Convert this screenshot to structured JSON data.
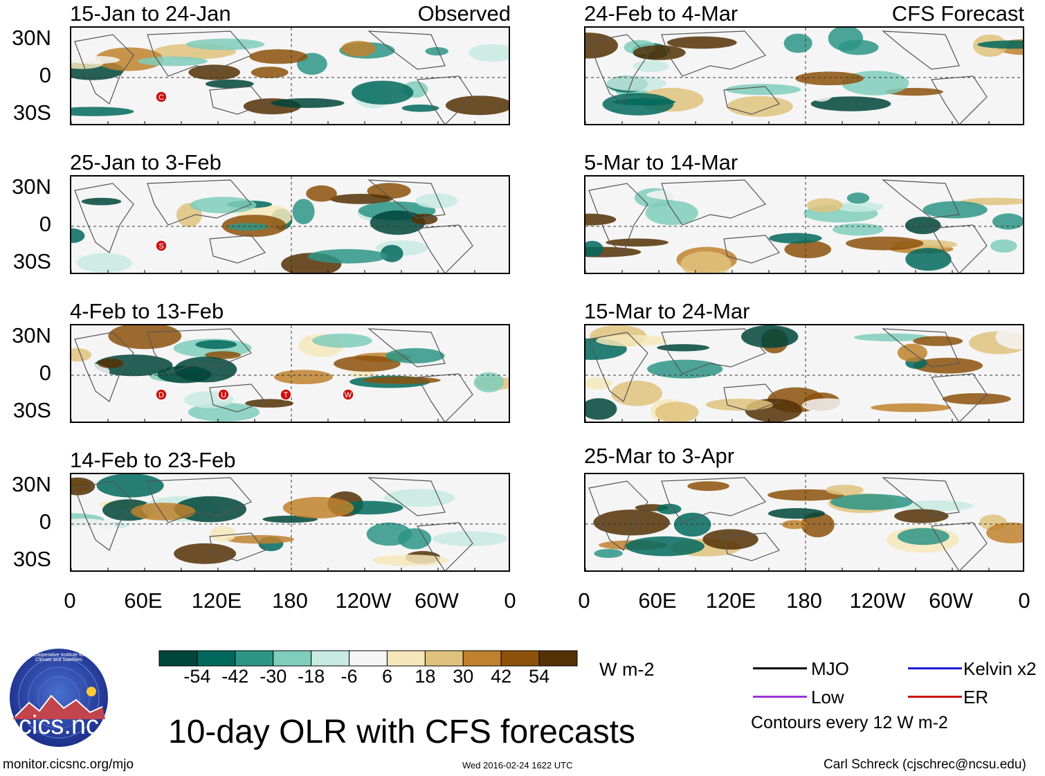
{
  "chart_data": {
    "type": "heatmap",
    "title": "10-day OLR with CFS forecasts",
    "units": "W m-2",
    "lat_ticks": [
      "30N",
      "0",
      "30S"
    ],
    "lon_ticks": [
      "0",
      "60E",
      "120E",
      "180",
      "120W",
      "60W",
      "0"
    ],
    "colorbar": {
      "levels": [
        "-54",
        "-42",
        "-30",
        "-18",
        "-6",
        "6",
        "18",
        "30",
        "42",
        "54"
      ],
      "colors": [
        "#00453a",
        "#02685d",
        "#2d9586",
        "#7fcdbb",
        "#c7eae1",
        "#f5f5f5",
        "#f6e7bb",
        "#dfc27d",
        "#bf812d",
        "#8c510a",
        "#543005"
      ]
    },
    "panels": [
      {
        "title": "15-Jan to 24-Jan",
        "tag": "Observed",
        "storms": [
          "C"
        ]
      },
      {
        "title": "25-Jan to 3-Feb",
        "tag": "",
        "storms": [
          "S"
        ]
      },
      {
        "title": "4-Feb to 13-Feb",
        "tag": "",
        "storms": [
          "D",
          "U",
          "T",
          "W"
        ]
      },
      {
        "title": "14-Feb to 23-Feb",
        "tag": "",
        "storms": []
      },
      {
        "title": "24-Feb to 4-Mar",
        "tag": "CFS Forecast",
        "storms": []
      },
      {
        "title": "5-Mar to 14-Mar",
        "tag": "",
        "storms": []
      },
      {
        "title": "15-Mar to 24-Mar",
        "tag": "",
        "storms": []
      },
      {
        "title": "25-Mar to 3-Apr",
        "tag": "",
        "storms": []
      }
    ]
  },
  "legend": {
    "mjo": "MJO",
    "kelvin": "Kelvin x2",
    "low": "Low",
    "er": "ER",
    "contours": "Contours every 12 W m-2",
    "colors": {
      "mjo": "#000000",
      "kelvin": "#1a1adc",
      "low": "#9933dd",
      "er": "#cc1111"
    }
  },
  "footer": {
    "left": "monitor.cicsnc.org/mjo",
    "center": "Wed 2016-02-24 1622 UTC",
    "right": "Carl Schreck (cjschrec@ncsu.edu)"
  },
  "logo": {
    "text": "cics.nc",
    "ring_text": "Cooperative Institute for Climate and Satellites"
  }
}
